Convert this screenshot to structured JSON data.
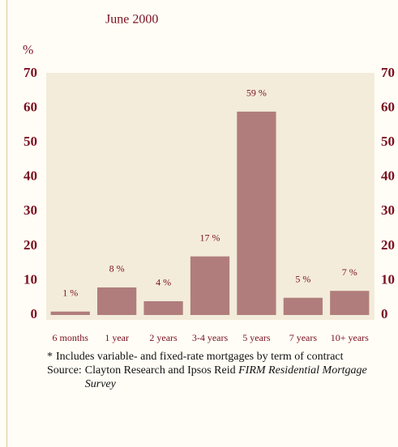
{
  "chart_data": {
    "type": "bar",
    "title": "June 2000",
    "y_label": "%",
    "categories": [
      "6 months",
      "1 year",
      "2 years",
      "3-4 years",
      "5 years",
      "7 years",
      "10+ years"
    ],
    "values": [
      1,
      8,
      4,
      17,
      59,
      5,
      7
    ],
    "value_labels": [
      "1 %",
      "8 %",
      "4 %",
      "17 %",
      "59 %",
      "5 %",
      "7 %"
    ],
    "color": "#b07d7c",
    "ylim": [
      0,
      70
    ],
    "yticks": [
      0,
      10,
      20,
      30,
      40,
      50,
      60,
      70
    ],
    "grid": false,
    "footnote_marker": "*",
    "footnote": "Includes variable- and fixed-rate mortgages by term of contract",
    "source_label": "Source:",
    "source": "Clayton Research and Ipsos Reid",
    "source_title": "FIRM Residential Mortgage Survey"
  }
}
